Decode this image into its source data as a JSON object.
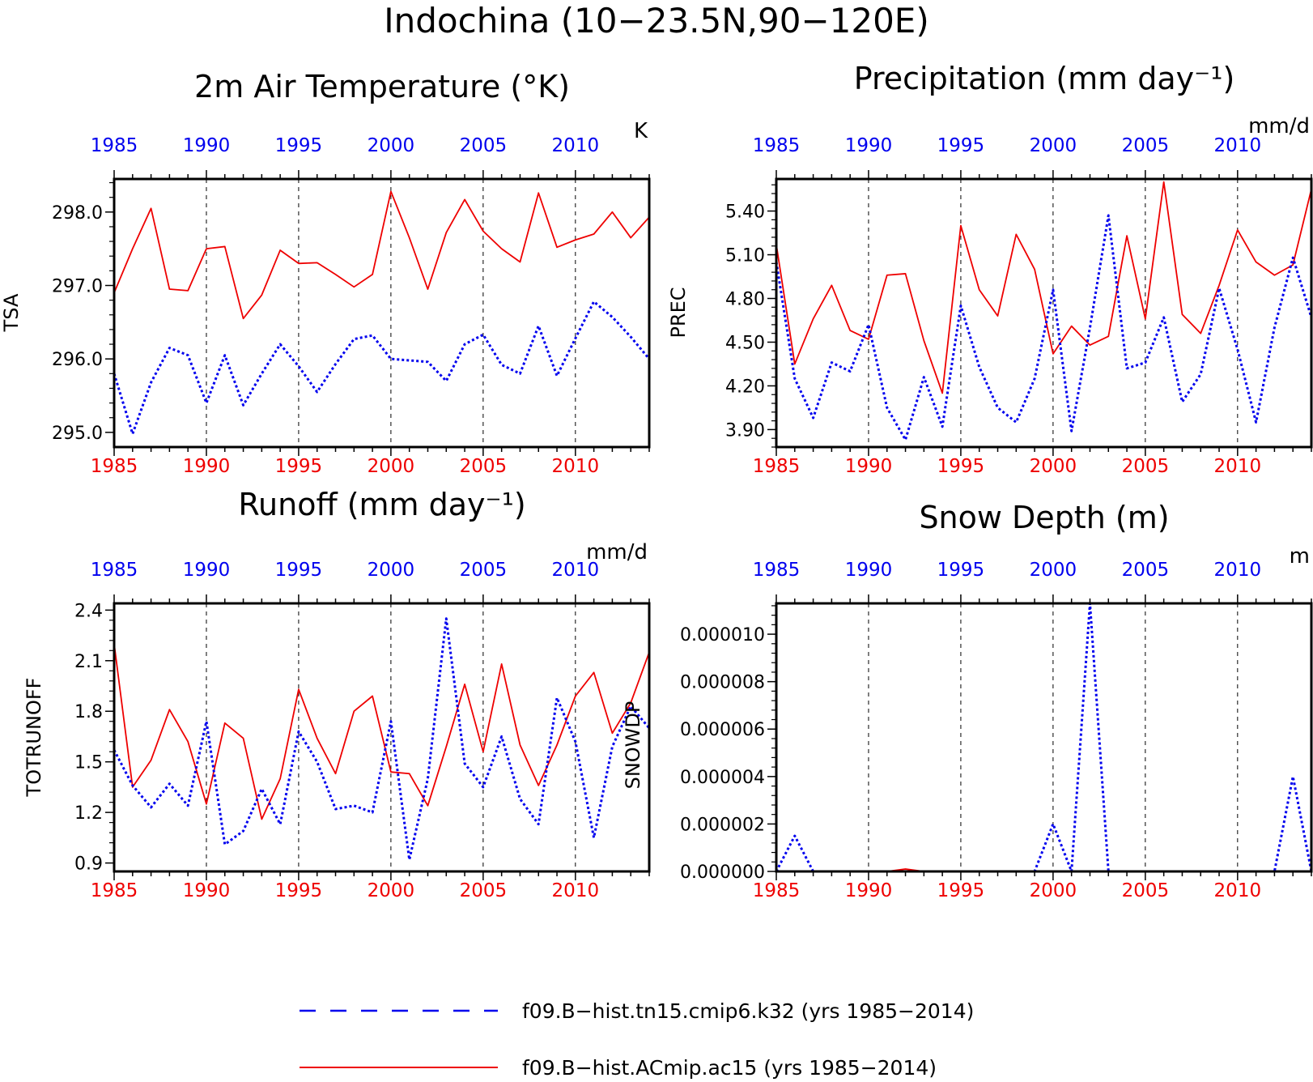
{
  "title": "Indochina (10−23.5N,90−120E)",
  "legend": [
    {
      "label": "f09.B−hist.tn15.cmip6.k32 (yrs 1985−2014)",
      "color": "#0000ee",
      "style": "dashed"
    },
    {
      "label": "f09.B−hist.ACmip.ac15 (yrs 1985−2014)",
      "color": "#ee0000",
      "style": "solid"
    }
  ],
  "chart_data": [
    {
      "type": "line",
      "title": "2m Air Temperature (°K)",
      "ylabel": "TSA",
      "units": "K",
      "xlim": [
        1985,
        2014
      ],
      "ylim": [
        294.8,
        298.45
      ],
      "xticks": [
        "1985",
        "1990",
        "1995",
        "2000",
        "2005",
        "2010"
      ],
      "yticks": [
        "295.0",
        "296.0",
        "297.0",
        "298.0"
      ],
      "x": [
        1985,
        1986,
        1987,
        1988,
        1989,
        1990,
        1991,
        1992,
        1993,
        1994,
        1995,
        1996,
        1997,
        1998,
        1999,
        2000,
        2001,
        2002,
        2003,
        2004,
        2005,
        2006,
        2007,
        2008,
        2009,
        2010,
        2011,
        2012,
        2013,
        2014
      ],
      "series": [
        {
          "color": "#ee0000",
          "style": "solid",
          "values": [
            296.9,
            297.5,
            298.05,
            296.95,
            296.93,
            297.5,
            297.53,
            296.55,
            296.87,
            297.48,
            297.3,
            297.31,
            297.15,
            296.98,
            297.15,
            298.28,
            297.65,
            296.95,
            297.72,
            298.17,
            297.74,
            297.5,
            297.32,
            298.26,
            297.52,
            297.62,
            297.7,
            298.0,
            297.65,
            297.93
          ]
        },
        {
          "color": "#0000ee",
          "style": "dashed",
          "values": [
            295.8,
            294.98,
            295.68,
            296.15,
            296.05,
            295.4,
            296.05,
            295.37,
            295.8,
            296.2,
            295.9,
            295.55,
            295.93,
            296.27,
            296.32,
            296.0,
            295.98,
            295.96,
            295.7,
            296.2,
            296.33,
            295.92,
            295.8,
            296.45,
            295.77,
            296.28,
            296.78,
            296.57,
            296.3,
            296.0
          ]
        }
      ]
    },
    {
      "type": "line",
      "title": "Precipitation (mm day⁻¹)",
      "ylabel": "PREC",
      "units": "mm/d",
      "xlim": [
        1985,
        2014
      ],
      "ylim": [
        3.78,
        5.62
      ],
      "xticks": [
        "1985",
        "1990",
        "1995",
        "2000",
        "2005",
        "2010"
      ],
      "yticks": [
        "3.90",
        "4.20",
        "4.50",
        "4.80",
        "5.10",
        "5.40"
      ],
      "x": [
        1985,
        1986,
        1987,
        1988,
        1989,
        1990,
        1991,
        1992,
        1993,
        1994,
        1995,
        1996,
        1997,
        1998,
        1999,
        2000,
        2001,
        2002,
        2003,
        2004,
        2005,
        2006,
        2007,
        2008,
        2009,
        2010,
        2011,
        2012,
        2013,
        2014
      ],
      "series": [
        {
          "color": "#ee0000",
          "style": "solid",
          "values": [
            5.17,
            4.35,
            4.66,
            4.89,
            4.58,
            4.52,
            4.96,
            4.97,
            4.51,
            4.15,
            5.3,
            4.86,
            4.68,
            5.24,
            5.0,
            4.42,
            4.61,
            4.48,
            4.54,
            5.23,
            4.66,
            5.6,
            4.69,
            4.56,
            4.89,
            5.27,
            5.05,
            4.96,
            5.03,
            5.55
          ]
        },
        {
          "color": "#0000ee",
          "style": "dashed",
          "values": [
            5.05,
            4.25,
            3.98,
            4.36,
            4.3,
            4.62,
            4.05,
            3.83,
            4.26,
            3.92,
            4.75,
            4.33,
            4.05,
            3.95,
            4.25,
            4.86,
            3.89,
            4.6,
            5.37,
            4.32,
            4.36,
            4.67,
            4.09,
            4.28,
            4.87,
            4.45,
            3.95,
            4.6,
            5.08,
            4.67
          ]
        }
      ]
    },
    {
      "type": "line",
      "title": "Runoff (mm day⁻¹)",
      "ylabel": "TOTRUNOFF",
      "units": "mm/d",
      "xlim": [
        1985,
        2014
      ],
      "ylim": [
        0.85,
        2.44
      ],
      "xticks": [
        "1985",
        "1990",
        "1995",
        "2000",
        "2005",
        "2010"
      ],
      "yticks": [
        "0.9",
        "1.2",
        "1.5",
        "1.8",
        "2.1",
        "2.4"
      ],
      "x": [
        1985,
        1986,
        1987,
        1988,
        1989,
        1990,
        1991,
        1992,
        1993,
        1994,
        1995,
        1996,
        1997,
        1998,
        1999,
        2000,
        2001,
        2002,
        2003,
        2004,
        2005,
        2006,
        2007,
        2008,
        2009,
        2010,
        2011,
        2012,
        2013,
        2014
      ],
      "series": [
        {
          "color": "#ee0000",
          "style": "solid",
          "values": [
            2.2,
            1.35,
            1.51,
            1.81,
            1.62,
            1.25,
            1.73,
            1.64,
            1.16,
            1.4,
            1.93,
            1.64,
            1.43,
            1.8,
            1.89,
            1.44,
            1.43,
            1.24,
            1.59,
            1.96,
            1.56,
            2.08,
            1.6,
            1.36,
            1.6,
            1.89,
            2.03,
            1.67,
            1.85,
            2.15
          ]
        },
        {
          "color": "#0000ee",
          "style": "dashed",
          "values": [
            1.57,
            1.36,
            1.23,
            1.37,
            1.24,
            1.74,
            1.01,
            1.09,
            1.34,
            1.13,
            1.68,
            1.5,
            1.22,
            1.24,
            1.2,
            1.74,
            0.92,
            1.4,
            2.35,
            1.49,
            1.35,
            1.65,
            1.28,
            1.13,
            1.88,
            1.62,
            1.05,
            1.59,
            1.83,
            1.7
          ]
        }
      ]
    },
    {
      "type": "line",
      "title": "Snow Depth (m)",
      "ylabel": "SNOWDP",
      "units": "m",
      "xlim": [
        1985,
        2014
      ],
      "ylim": [
        0,
        1.13e-05
      ],
      "xticks": [
        "1985",
        "1990",
        "1995",
        "2000",
        "2005",
        "2010"
      ],
      "yticks": [
        "0.000000",
        "0.000002",
        "0.000004",
        "0.000006",
        "0.000008",
        "0.000010"
      ],
      "x": [
        1985,
        1986,
        1987,
        1988,
        1989,
        1990,
        1991,
        1992,
        1993,
        1994,
        1995,
        1996,
        1997,
        1998,
        1999,
        2000,
        2001,
        2002,
        2003,
        2004,
        2005,
        2006,
        2007,
        2008,
        2009,
        2010,
        2011,
        2012,
        2013,
        2014
      ],
      "series": [
        {
          "color": "#ee0000",
          "style": "solid",
          "values": [
            0,
            0,
            0,
            0,
            0,
            0,
            0,
            1e-07,
            0,
            0,
            0,
            0,
            0,
            0,
            0,
            0,
            0,
            0,
            0,
            0,
            0,
            0,
            0,
            0,
            0,
            0,
            0,
            0,
            0,
            0
          ]
        },
        {
          "color": "#0000ee",
          "style": "dashed",
          "values": [
            0,
            1.5e-06,
            0,
            0,
            0,
            0,
            0,
            0,
            0,
            0,
            0,
            0,
            0,
            0,
            0,
            2e-06,
            0,
            1.13e-05,
            0,
            0,
            0,
            0,
            0,
            0,
            0,
            0,
            0,
            0,
            4e-06,
            0
          ]
        }
      ]
    }
  ]
}
